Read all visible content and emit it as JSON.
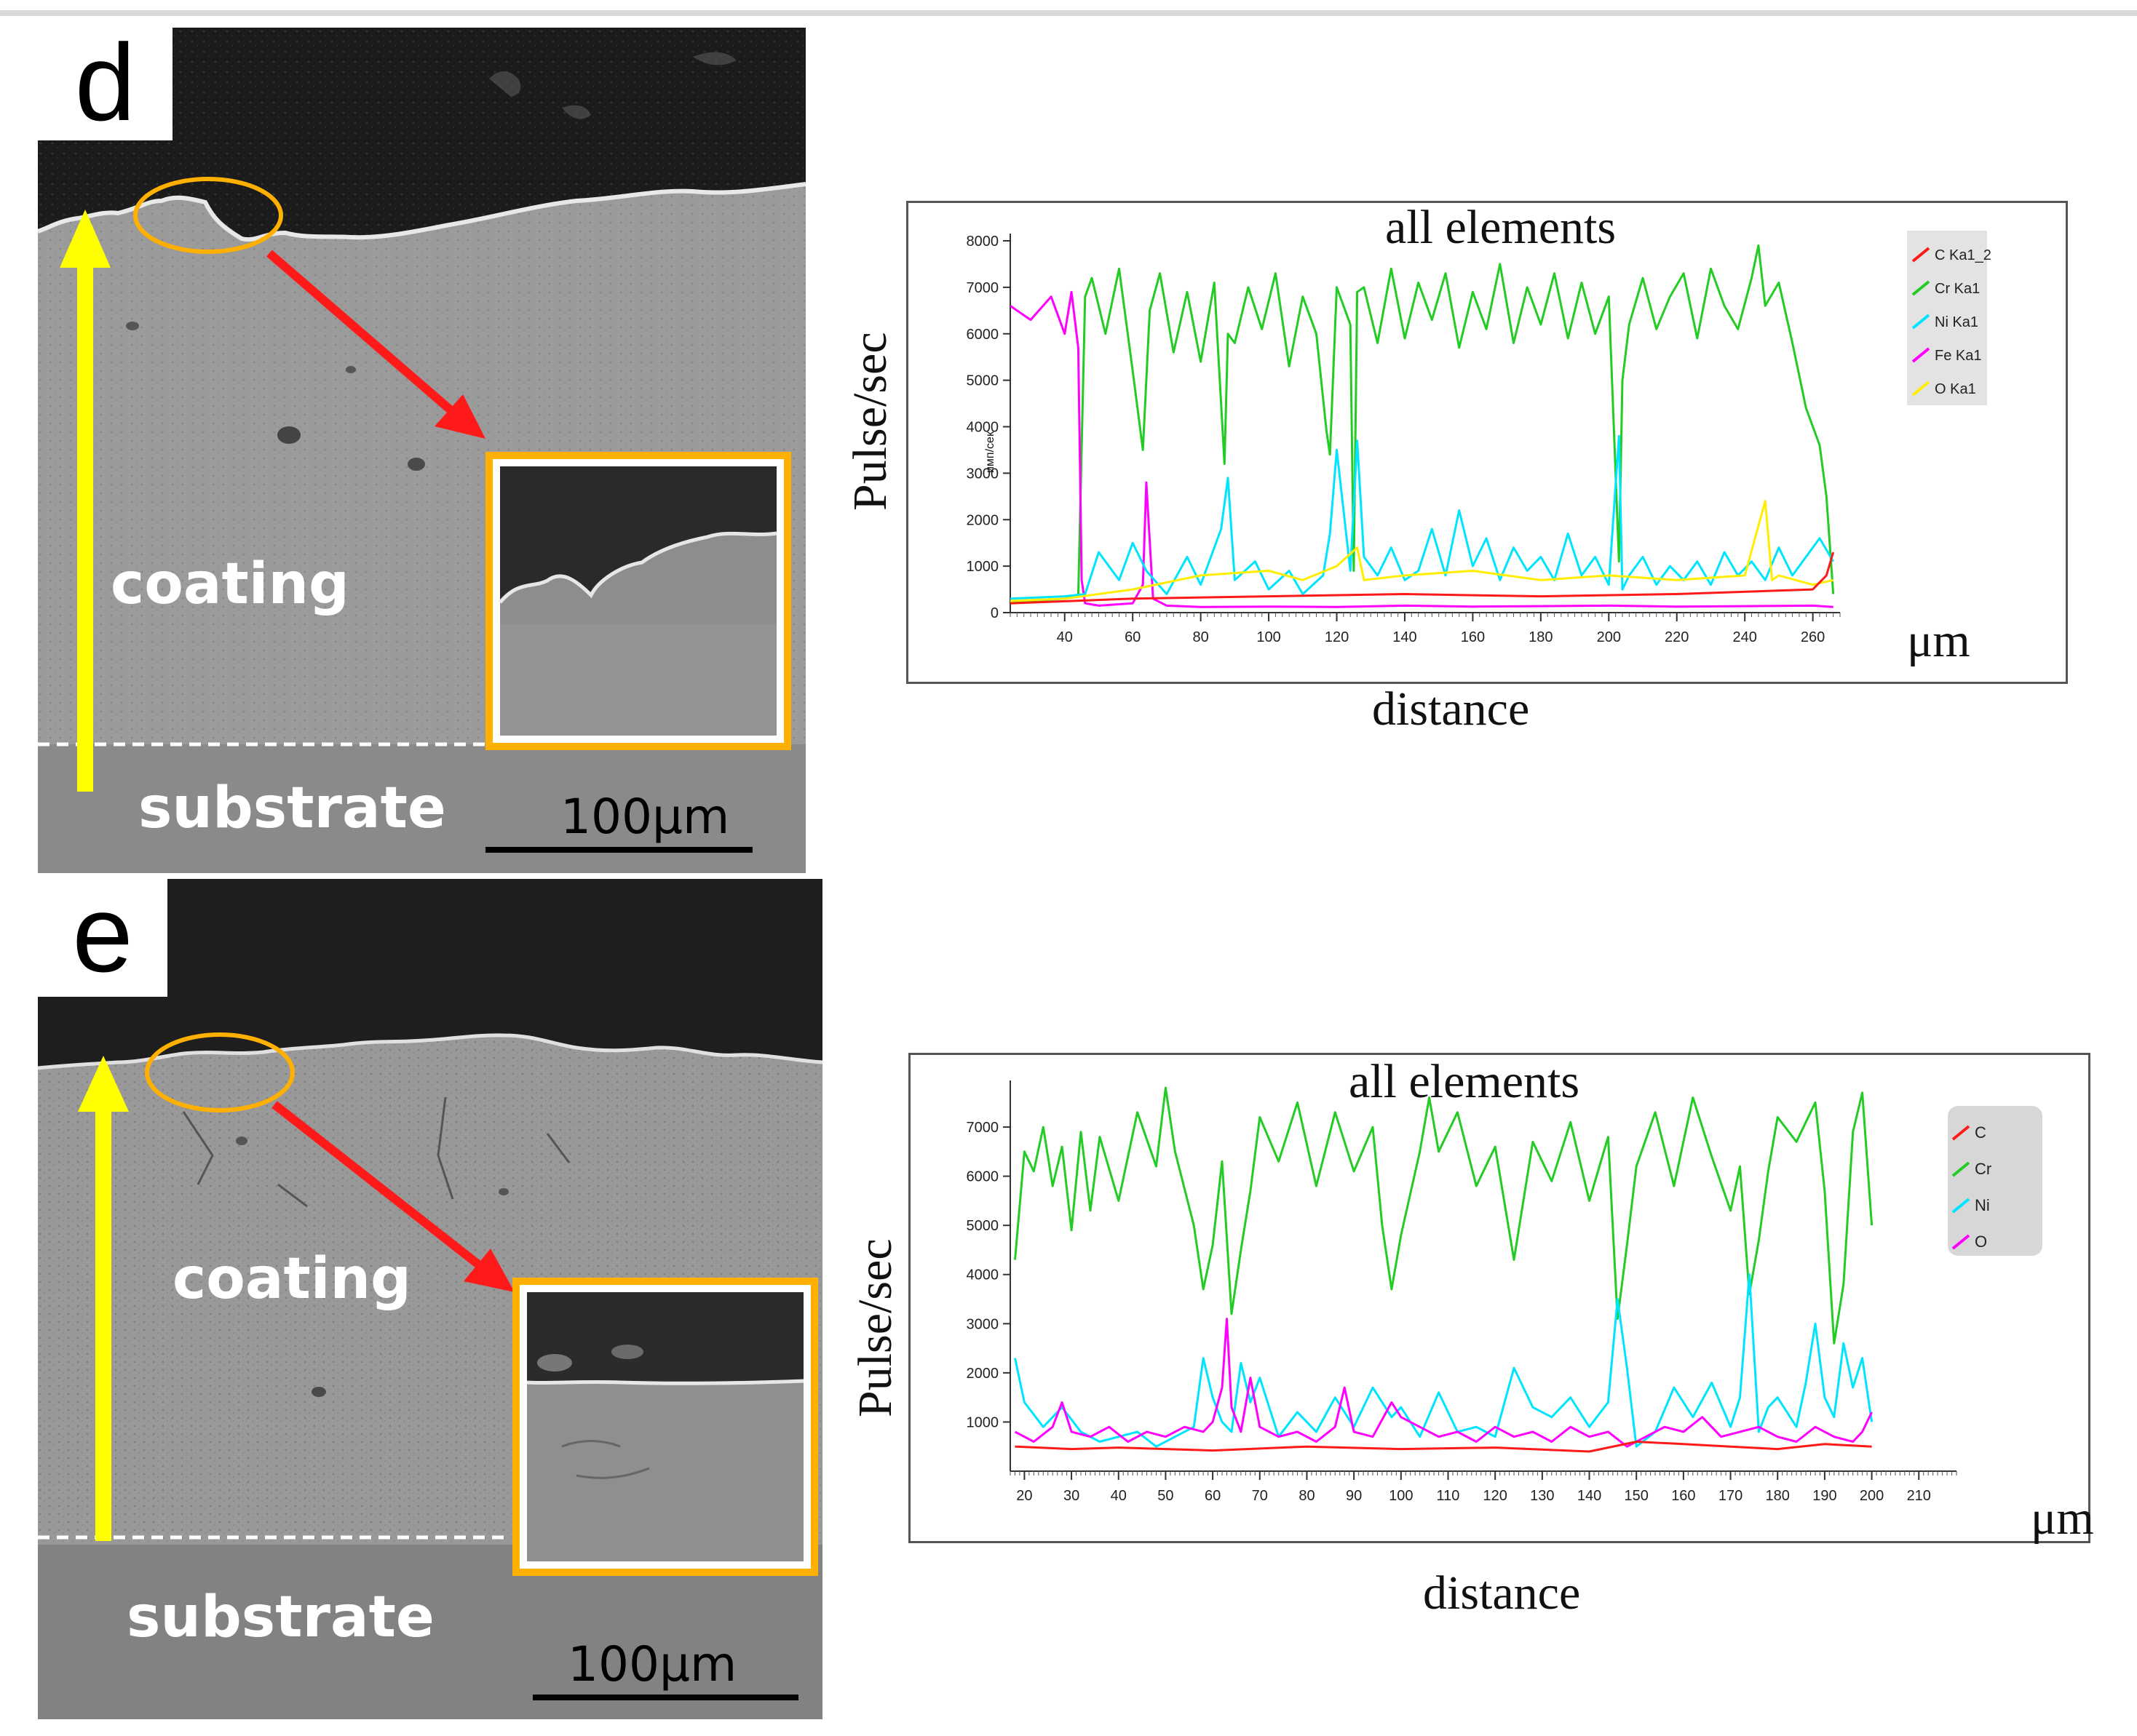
{
  "panels": [
    {
      "id": "d",
      "letter": "d",
      "coating_label": "coating",
      "substrate_label": "substrate",
      "scale_bar": "100μm",
      "colors": {
        "arrow_up": "#ffff00",
        "arrow_diag": "#ff1a1a",
        "inset": "#ffb000"
      }
    },
    {
      "id": "e",
      "letter": "e",
      "coating_label": "coating",
      "substrate_label": "substrate",
      "scale_bar": "100μm",
      "colors": {
        "arrow_up": "#ffff00",
        "arrow_diag": "#ff1a1a",
        "inset": "#ffb000"
      }
    }
  ],
  "chart_data": [
    {
      "type": "line",
      "title": "all elements",
      "xlabel": "distance",
      "xunit": "μm",
      "ylabel": "Pulse/sec",
      "small_ylabel": "имп/сек",
      "xlim": [
        24,
        268
      ],
      "ylim": [
        0,
        8000
      ],
      "xticks": [
        40,
        60,
        80,
        100,
        120,
        140,
        160,
        180,
        200,
        220,
        240,
        260
      ],
      "yticks": [
        0,
        1000,
        2000,
        3000,
        4000,
        5000,
        6000,
        7000,
        8000
      ],
      "legend": [
        "C Ka1_2",
        "Cr Ka1",
        "Ni Ka1",
        "Fe Ka1",
        "O Ka1"
      ],
      "series": [
        {
          "name": "Cr Ka1",
          "color": "#22cc22",
          "x": [
            24,
            30,
            40,
            44,
            46,
            48,
            52,
            56,
            60,
            63,
            65,
            68,
            72,
            76,
            80,
            84,
            87,
            88,
            90,
            94,
            98,
            102,
            106,
            110,
            114,
            117,
            118,
            120,
            124,
            125,
            126,
            128,
            132,
            136,
            140,
            144,
            148,
            152,
            156,
            160,
            164,
            168,
            172,
            176,
            180,
            184,
            188,
            192,
            196,
            200,
            203,
            204,
            206,
            210,
            214,
            218,
            222,
            226,
            230,
            234,
            238,
            242,
            244,
            246,
            250,
            254,
            258,
            262,
            264,
            266
          ],
          "values": [
            200,
            250,
            300,
            350,
            6800,
            7200,
            6000,
            7400,
            5200,
            3500,
            6500,
            7300,
            5600,
            6900,
            5400,
            7100,
            3200,
            6000,
            5800,
            7000,
            6100,
            7300,
            5300,
            6800,
            6000,
            3900,
            3400,
            7000,
            6200,
            900,
            6900,
            7000,
            5800,
            7400,
            5900,
            7100,
            6300,
            7300,
            5700,
            6900,
            6100,
            7500,
            5800,
            7000,
            6200,
            7300,
            5900,
            7100,
            6000,
            6800,
            1100,
            5000,
            6200,
            7200,
            6100,
            6800,
            7300,
            5900,
            7400,
            6600,
            6100,
            7200,
            7900,
            6600,
            7100,
            5800,
            4400,
            3600,
            2500,
            400
          ]
        },
        {
          "name": "Fe Ka1",
          "color": "#ff00ff",
          "x": [
            24,
            30,
            36,
            40,
            42,
            44,
            45,
            46,
            50,
            60,
            63,
            64,
            66,
            70,
            80,
            100,
            120,
            140,
            160,
            180,
            200,
            220,
            240,
            260,
            266
          ],
          "values": [
            6600,
            6300,
            6800,
            6000,
            6900,
            5700,
            700,
            200,
            150,
            200,
            600,
            2800,
            300,
            150,
            120,
            130,
            120,
            150,
            130,
            140,
            150,
            130,
            140,
            150,
            120
          ]
        },
        {
          "name": "Ni Ka1",
          "color": "#00e5ff",
          "x": [
            24,
            40,
            46,
            50,
            56,
            60,
            64,
            70,
            76,
            80,
            86,
            88,
            90,
            96,
            100,
            106,
            110,
            116,
            118,
            120,
            124,
            126,
            128,
            132,
            136,
            140,
            144,
            148,
            152,
            156,
            160,
            164,
            168,
            172,
            176,
            180,
            184,
            188,
            192,
            196,
            200,
            203,
            204,
            206,
            210,
            214,
            218,
            222,
            226,
            230,
            234,
            238,
            242,
            246,
            250,
            254,
            258,
            262,
            266
          ],
          "values": [
            300,
            350,
            400,
            1300,
            700,
            1500,
            900,
            400,
            1200,
            600,
            1800,
            2900,
            700,
            1100,
            500,
            900,
            400,
            800,
            1700,
            3500,
            900,
            3700,
            1200,
            800,
            1400,
            700,
            900,
            1800,
            800,
            2200,
            1000,
            1600,
            700,
            1400,
            900,
            1200,
            700,
            1700,
            800,
            1200,
            600,
            3800,
            500,
            800,
            1200,
            600,
            1000,
            700,
            1100,
            600,
            1300,
            800,
            1100,
            700,
            1400,
            800,
            1200,
            1600,
            1100
          ]
        },
        {
          "name": "O Ka1",
          "color": "#ffee00",
          "x": [
            24,
            40,
            60,
            80,
            100,
            110,
            120,
            126,
            128,
            140,
            160,
            180,
            200,
            220,
            240,
            246,
            248,
            250,
            260,
            266
          ],
          "values": [
            250,
            300,
            500,
            800,
            900,
            700,
            1000,
            1400,
            700,
            800,
            900,
            700,
            800,
            700,
            800,
            2400,
            700,
            800,
            600,
            700
          ]
        },
        {
          "name": "C Ka1_2",
          "color": "#ff1a1a",
          "x": [
            24,
            60,
            100,
            140,
            180,
            220,
            260,
            264,
            266
          ],
          "values": [
            200,
            300,
            350,
            400,
            350,
            400,
            500,
            800,
            1300
          ]
        }
      ]
    },
    {
      "type": "line",
      "title": "all elements",
      "xlabel": "distance",
      "xunit": "μm",
      "ylabel": "Pulse/sec",
      "xlim": [
        17,
        218
      ],
      "ylim": [
        0,
        7800
      ],
      "xticks": [
        20,
        30,
        40,
        50,
        60,
        70,
        80,
        90,
        100,
        110,
        120,
        130,
        140,
        150,
        160,
        170,
        180,
        190,
        200,
        210
      ],
      "yticks": [
        1000,
        2000,
        3000,
        4000,
        5000,
        6000,
        7000
      ],
      "legend": [
        "C",
        "Cr",
        "Ni",
        "O"
      ],
      "series": [
        {
          "name": "Cr",
          "color": "#22cc22",
          "x": [
            18,
            20,
            22,
            24,
            26,
            28,
            30,
            32,
            34,
            36,
            40,
            44,
            48,
            50,
            52,
            56,
            58,
            60,
            62,
            64,
            66,
            68,
            70,
            74,
            78,
            82,
            86,
            90,
            94,
            96,
            98,
            100,
            104,
            106,
            108,
            112,
            116,
            120,
            124,
            128,
            132,
            136,
            140,
            144,
            146,
            148,
            150,
            154,
            158,
            162,
            166,
            170,
            172,
            174,
            176,
            178,
            180,
            184,
            188,
            190,
            192,
            194,
            196,
            198,
            200
          ],
          "values": [
            4300,
            6500,
            6100,
            7000,
            5800,
            6600,
            4900,
            6900,
            5300,
            6800,
            5500,
            7300,
            6200,
            7800,
            6500,
            5000,
            3700,
            4600,
            6300,
            3200,
            4500,
            5700,
            7200,
            6300,
            7500,
            5800,
            7300,
            6100,
            7000,
            5000,
            3700,
            4800,
            6500,
            7600,
            6500,
            7300,
            5800,
            6600,
            4300,
            6700,
            5900,
            7100,
            5500,
            6800,
            3100,
            4600,
            6200,
            7300,
            5800,
            7600,
            6400,
            5300,
            6200,
            3600,
            4700,
            6100,
            7200,
            6700,
            7500,
            5700,
            2600,
            3800,
            6900,
            7700,
            5000
          ]
        },
        {
          "name": "Ni",
          "color": "#00e5ff",
          "x": [
            18,
            20,
            24,
            28,
            32,
            36,
            40,
            44,
            48,
            52,
            56,
            58,
            60,
            62,
            64,
            66,
            68,
            70,
            74,
            78,
            82,
            86,
            90,
            94,
            98,
            100,
            104,
            108,
            112,
            116,
            120,
            124,
            128,
            132,
            136,
            140,
            144,
            146,
            148,
            150,
            154,
            158,
            162,
            166,
            170,
            172,
            174,
            176,
            178,
            180,
            184,
            186,
            188,
            190,
            192,
            194,
            196,
            198,
            200
          ],
          "values": [
            2300,
            1400,
            900,
            1300,
            800,
            600,
            700,
            800,
            500,
            700,
            900,
            2300,
            1500,
            1000,
            800,
            2200,
            1400,
            1900,
            700,
            1200,
            800,
            1500,
            900,
            1700,
            1100,
            1300,
            700,
            1600,
            800,
            900,
            700,
            2100,
            1300,
            1100,
            1500,
            900,
            1400,
            3500,
            2100,
            500,
            800,
            1700,
            1100,
            1800,
            900,
            1500,
            4000,
            800,
            1300,
            1500,
            900,
            1800,
            3000,
            1500,
            1100,
            2600,
            1700,
            2300,
            1000
          ]
        },
        {
          "name": "O",
          "color": "#ff00ff",
          "x": [
            18,
            22,
            26,
            28,
            30,
            34,
            38,
            42,
            46,
            50,
            54,
            58,
            60,
            62,
            63,
            64,
            66,
            68,
            70,
            74,
            78,
            82,
            86,
            88,
            90,
            94,
            98,
            100,
            104,
            108,
            112,
            116,
            120,
            124,
            128,
            132,
            136,
            140,
            144,
            148,
            152,
            156,
            160,
            164,
            168,
            172,
            176,
            180,
            184,
            188,
            192,
            196,
            198,
            200
          ],
          "values": [
            800,
            600,
            900,
            1400,
            800,
            700,
            900,
            600,
            800,
            700,
            900,
            800,
            1000,
            1700,
            3100,
            1300,
            800,
            1900,
            900,
            700,
            800,
            600,
            900,
            1700,
            800,
            700,
            1400,
            1100,
            900,
            700,
            800,
            600,
            900,
            700,
            800,
            600,
            900,
            700,
            800,
            500,
            700,
            900,
            800,
            1100,
            700,
            800,
            900,
            700,
            600,
            900,
            700,
            600,
            800,
            1200
          ]
        },
        {
          "name": "C",
          "color": "#ff1a1a",
          "x": [
            18,
            30,
            40,
            60,
            80,
            100,
            120,
            140,
            150,
            160,
            170,
            180,
            190,
            200
          ],
          "values": [
            500,
            450,
            480,
            420,
            500,
            450,
            480,
            400,
            600,
            550,
            500,
            450,
            550,
            500
          ]
        }
      ]
    }
  ]
}
